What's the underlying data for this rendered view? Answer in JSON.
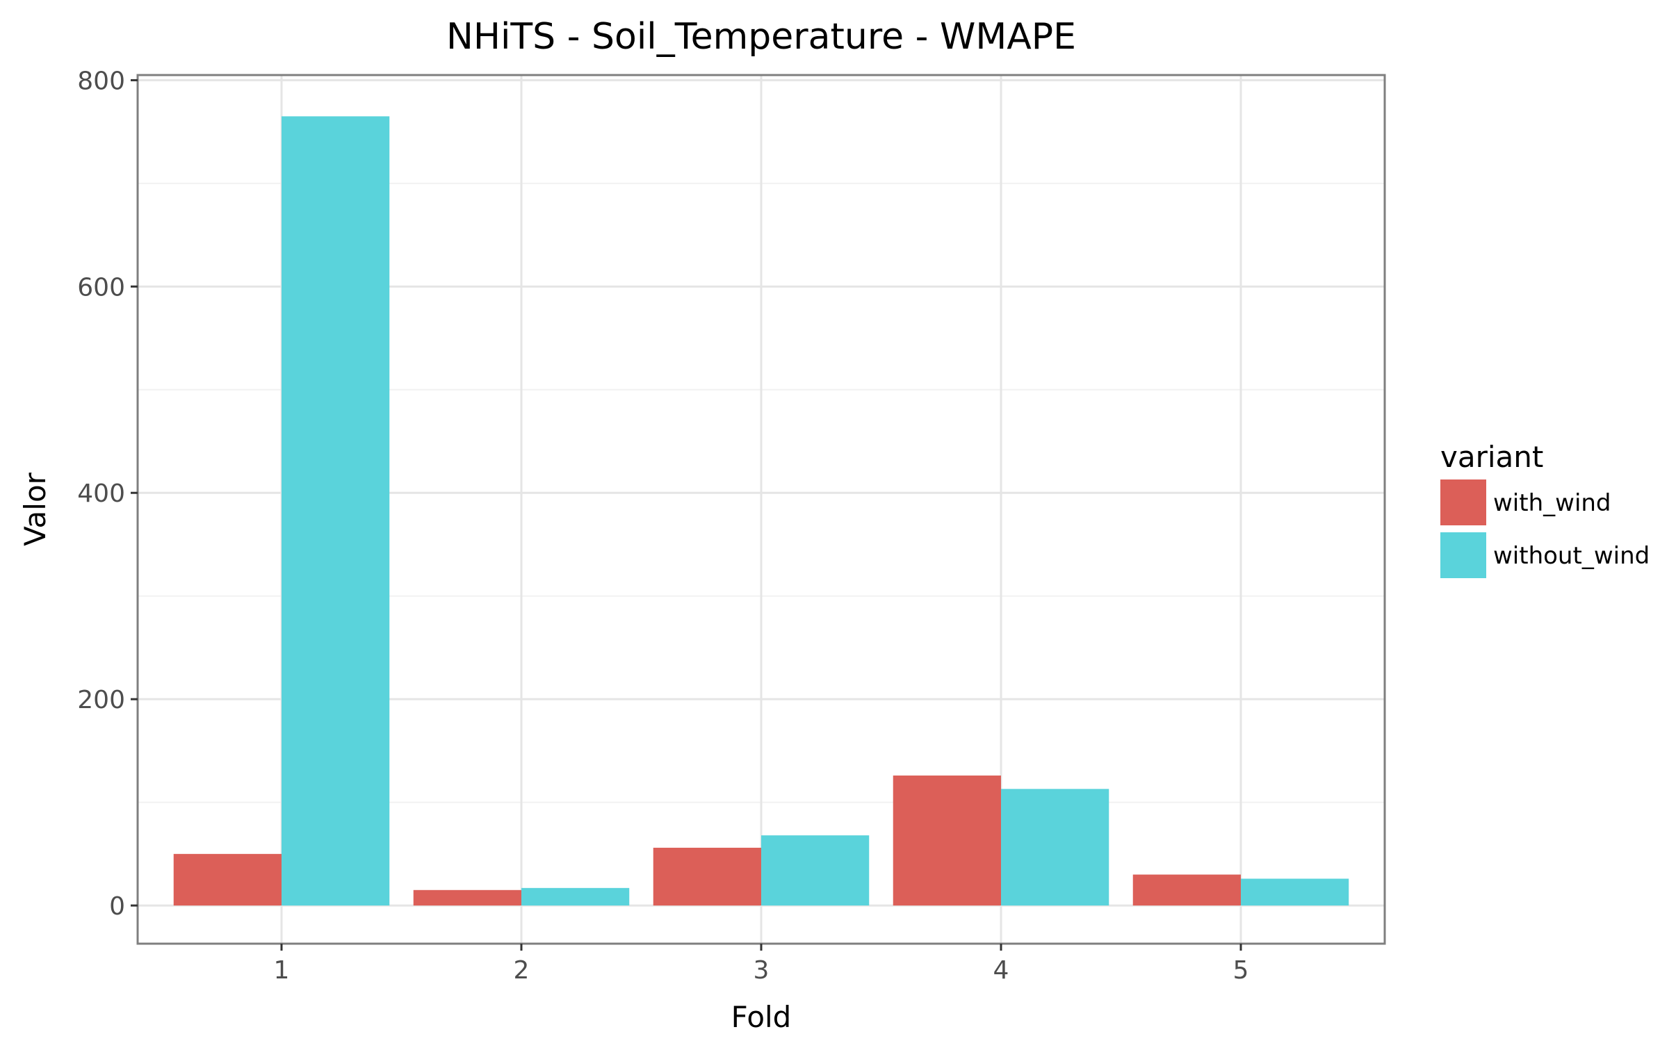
{
  "chart_data": {
    "type": "bar",
    "title": "NHiTS - Soil_Temperature - WMAPE",
    "xlabel": "Fold",
    "ylabel": "Valor",
    "categories": [
      "1",
      "2",
      "3",
      "4",
      "5"
    ],
    "series": [
      {
        "name": "with_wind",
        "color": "#dc5f58",
        "values": [
          50,
          15,
          56,
          126,
          30
        ]
      },
      {
        "name": "without_wind",
        "color": "#5ad3db",
        "values": [
          765,
          17,
          68,
          113,
          26
        ]
      }
    ],
    "ylim": [
      -37,
      805
    ],
    "yticks": [
      0,
      200,
      400,
      600,
      800
    ],
    "yminor": [
      100,
      300,
      500,
      700
    ],
    "grid": true,
    "legend": {
      "title": "variant",
      "placement": "right"
    }
  }
}
